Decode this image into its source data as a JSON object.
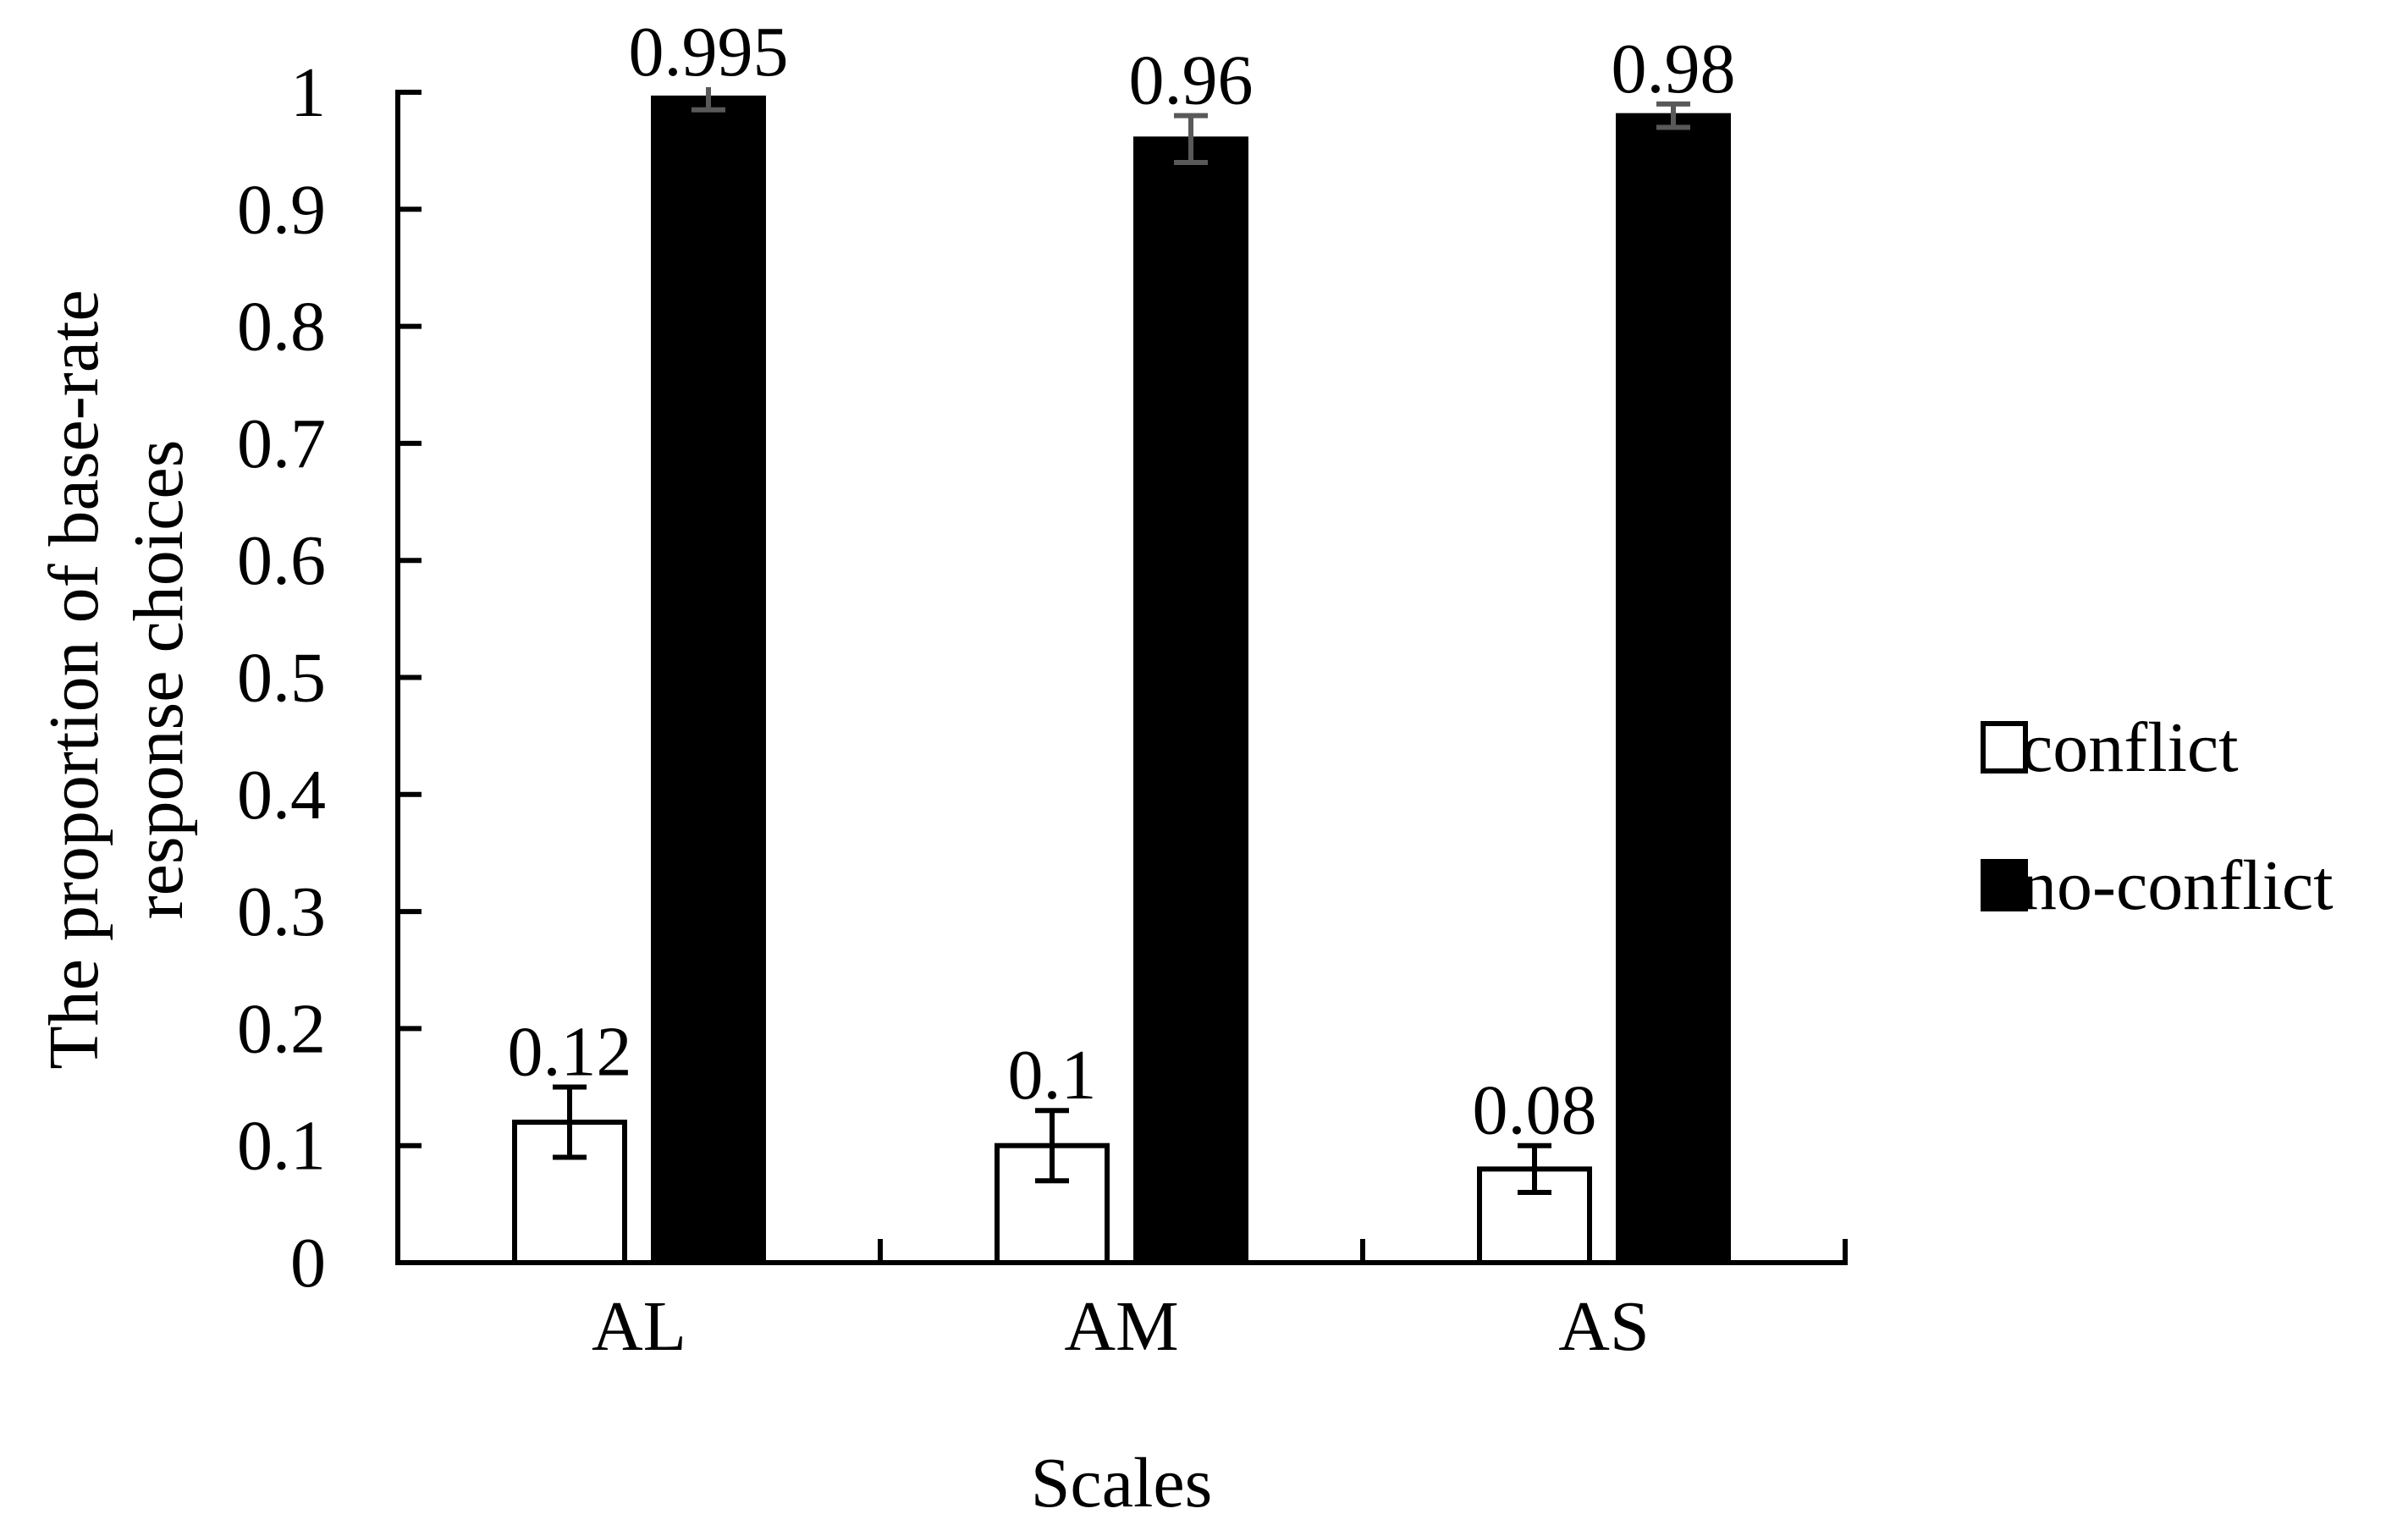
{
  "chart_data": {
    "type": "bar",
    "title": "",
    "xlabel": "Scales",
    "ylabel": [
      "The proportion of base-rate",
      "response choices"
    ],
    "categories": [
      "AL",
      "AM",
      "AS"
    ],
    "series": [
      {
        "name": "conflict",
        "values": [
          0.12,
          0.1,
          0.08
        ],
        "errors": [
          0.03,
          0.03,
          0.02
        ],
        "labels": [
          "0.12",
          "0.1",
          "0.08"
        ],
        "fill": "#ffffff",
        "stroke": "#000000",
        "error_color": "#000000"
      },
      {
        "name": "no-conflict",
        "values": [
          0.995,
          0.96,
          0.98
        ],
        "errors": [
          0.01,
          0.02,
          0.01
        ],
        "labels": [
          "0.995",
          "0.96",
          "0.98"
        ],
        "fill": "#000000",
        "stroke": "#000000",
        "error_color": "#595959"
      }
    ],
    "ylim": [
      0,
      1
    ],
    "yticks": [
      "0",
      "0.1",
      "0.2",
      "0.3",
      "0.4",
      "0.5",
      "0.6",
      "0.7",
      "0.8",
      "0.9",
      "1"
    ],
    "grid": false,
    "legend_position": "right"
  }
}
